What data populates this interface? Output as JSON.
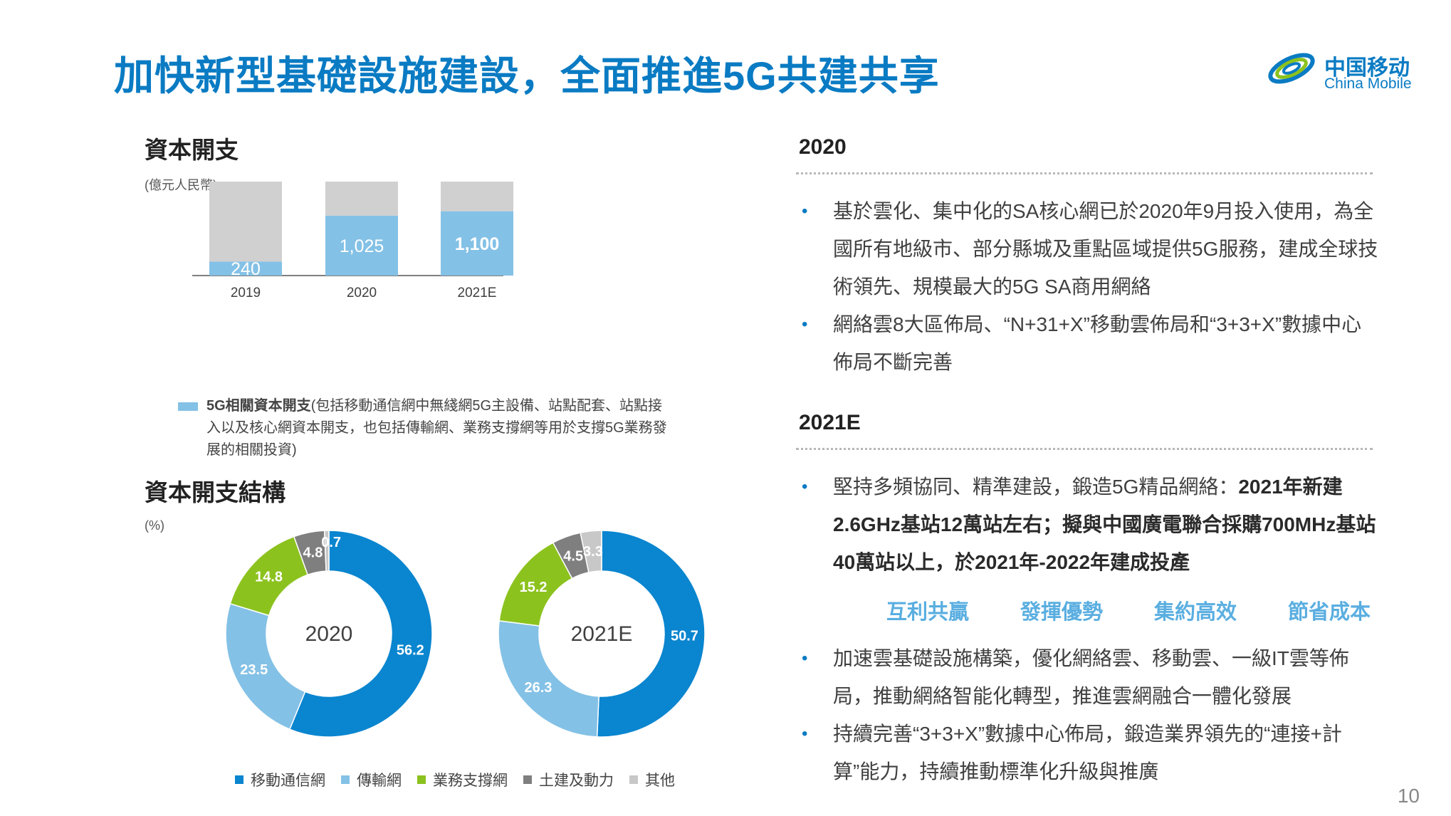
{
  "page": {
    "title": "加快新型基礎設施建設，全面推進5G共建共享",
    "page_number": "10"
  },
  "logo": {
    "name_cn": "中国移动",
    "name_en": "China Mobile",
    "color": "#0a7bc3"
  },
  "capex": {
    "section_title": "資本開支",
    "unit": "(億元人民幣)",
    "legend_bold": "5G相關資本開支",
    "legend_rest": "(包括移動通信網中無綫網5G主設備、站點配套、站點接入以及核心網資本開支，也包括傳輸網、業務支撐網等用於支撐5G業務發展的相關投資)"
  },
  "structure": {
    "section_title": "資本開支結構",
    "unit": "(%)"
  },
  "right_panel": {
    "sections": [
      {
        "year": "2020",
        "bullets": [
          [
            {
              "t": "基於雲化、集中化的SA核心網已於2020年9月投入使用，為全國所有地級市、部分縣城及重點區域提供5G服務，建成全球技術領先、規模最大的5G SA商用網絡",
              "b": false
            }
          ],
          [
            {
              "t": "網絡雲8大區佈局、“N+31+X”移動雲佈局和“3+3+X”數據中心佈局不斷完善",
              "b": false
            }
          ]
        ]
      },
      {
        "year": "2021E",
        "bullets": [
          [
            {
              "t": "堅持多頻協同、精準建設，鍛造5G精品網絡：",
              "b": false
            },
            {
              "t": "2021年新建2.6GHz基站12萬站左右；擬與中國廣電聯合採購700MHz基站40萬站以上，於2021年-2022年建成投產",
              "b": true
            }
          ]
        ]
      },
      {
        "year": "",
        "bullets": [
          [
            {
              "t": "加速雲基礎設施構築，優化網絡雲、移動雲、一級IT雲等佈局，推動網絡智能化轉型，推進雲網融合一體化發展",
              "b": false
            }
          ],
          [
            {
              "t": "持續完善“3+3+X”數據中心佈局，鍛造業界領先的“連接+計算”能力，持續推動標準化升級與推廣",
              "b": false
            }
          ]
        ]
      }
    ],
    "keywords": [
      "互利共贏",
      "發揮優勢",
      "集約高效",
      "節省成本"
    ]
  },
  "chart_data": [
    {
      "type": "bar",
      "stacked": true,
      "categories": [
        "2019",
        "2020",
        "2021E"
      ],
      "totals": [
        "1,659",
        "1,806",
        "1,836"
      ],
      "total_values": [
        1659,
        1806,
        1836
      ],
      "series": [
        {
          "name": "5G相關資本開支",
          "values": [
            240,
            1025,
            1100
          ],
          "labels": [
            "240",
            "1,025",
            "1,100"
          ],
          "color": "#84c1e6"
        },
        {
          "values": [
            1419,
            781,
            736
          ],
          "color": "#d0d0d0"
        }
      ],
      "ylim": [
        0,
        1900
      ],
      "bold_category": "2021E",
      "grid": false,
      "legend": "bottom"
    },
    {
      "type": "pie",
      "donut": true,
      "center_label": "2020",
      "slices": [
        {
          "name": "移動通信網",
          "value": 56.2,
          "label": "56.2"
        },
        {
          "name": "傳輸網",
          "value": 23.5,
          "label": "23.5"
        },
        {
          "name": "業務支撐網",
          "value": 14.8,
          "label": "14.8"
        },
        {
          "name": "土建及動力",
          "value": 4.8,
          "label": "4.8"
        },
        {
          "name": "其他",
          "value": 0.7,
          "label": "0.7"
        }
      ],
      "legend": "bottom"
    },
    {
      "type": "pie",
      "donut": true,
      "center_label": "2021E",
      "slices": [
        {
          "name": "移動通信網",
          "value": 50.7,
          "label": "50.7"
        },
        {
          "name": "傳輸網",
          "value": 26.3,
          "label": "26.3"
        },
        {
          "name": "業務支撐網",
          "value": 15.2,
          "label": "15.2"
        },
        {
          "name": "土建及動力",
          "value": 4.5,
          "label": "4.5"
        },
        {
          "name": "其他",
          "value": 3.3,
          "label": "3.3"
        }
      ],
      "legend": "bottom"
    }
  ],
  "donut_legend": [
    {
      "name": "移動通信網",
      "color": "#0a85cf"
    },
    {
      "name": "傳輸網",
      "color": "#84c1e6"
    },
    {
      "name": "業務支撐網",
      "color": "#8cc21e"
    },
    {
      "name": "土建及動力",
      "color": "#7f7f7f"
    },
    {
      "name": "其他",
      "color": "#c8c8c8"
    }
  ]
}
